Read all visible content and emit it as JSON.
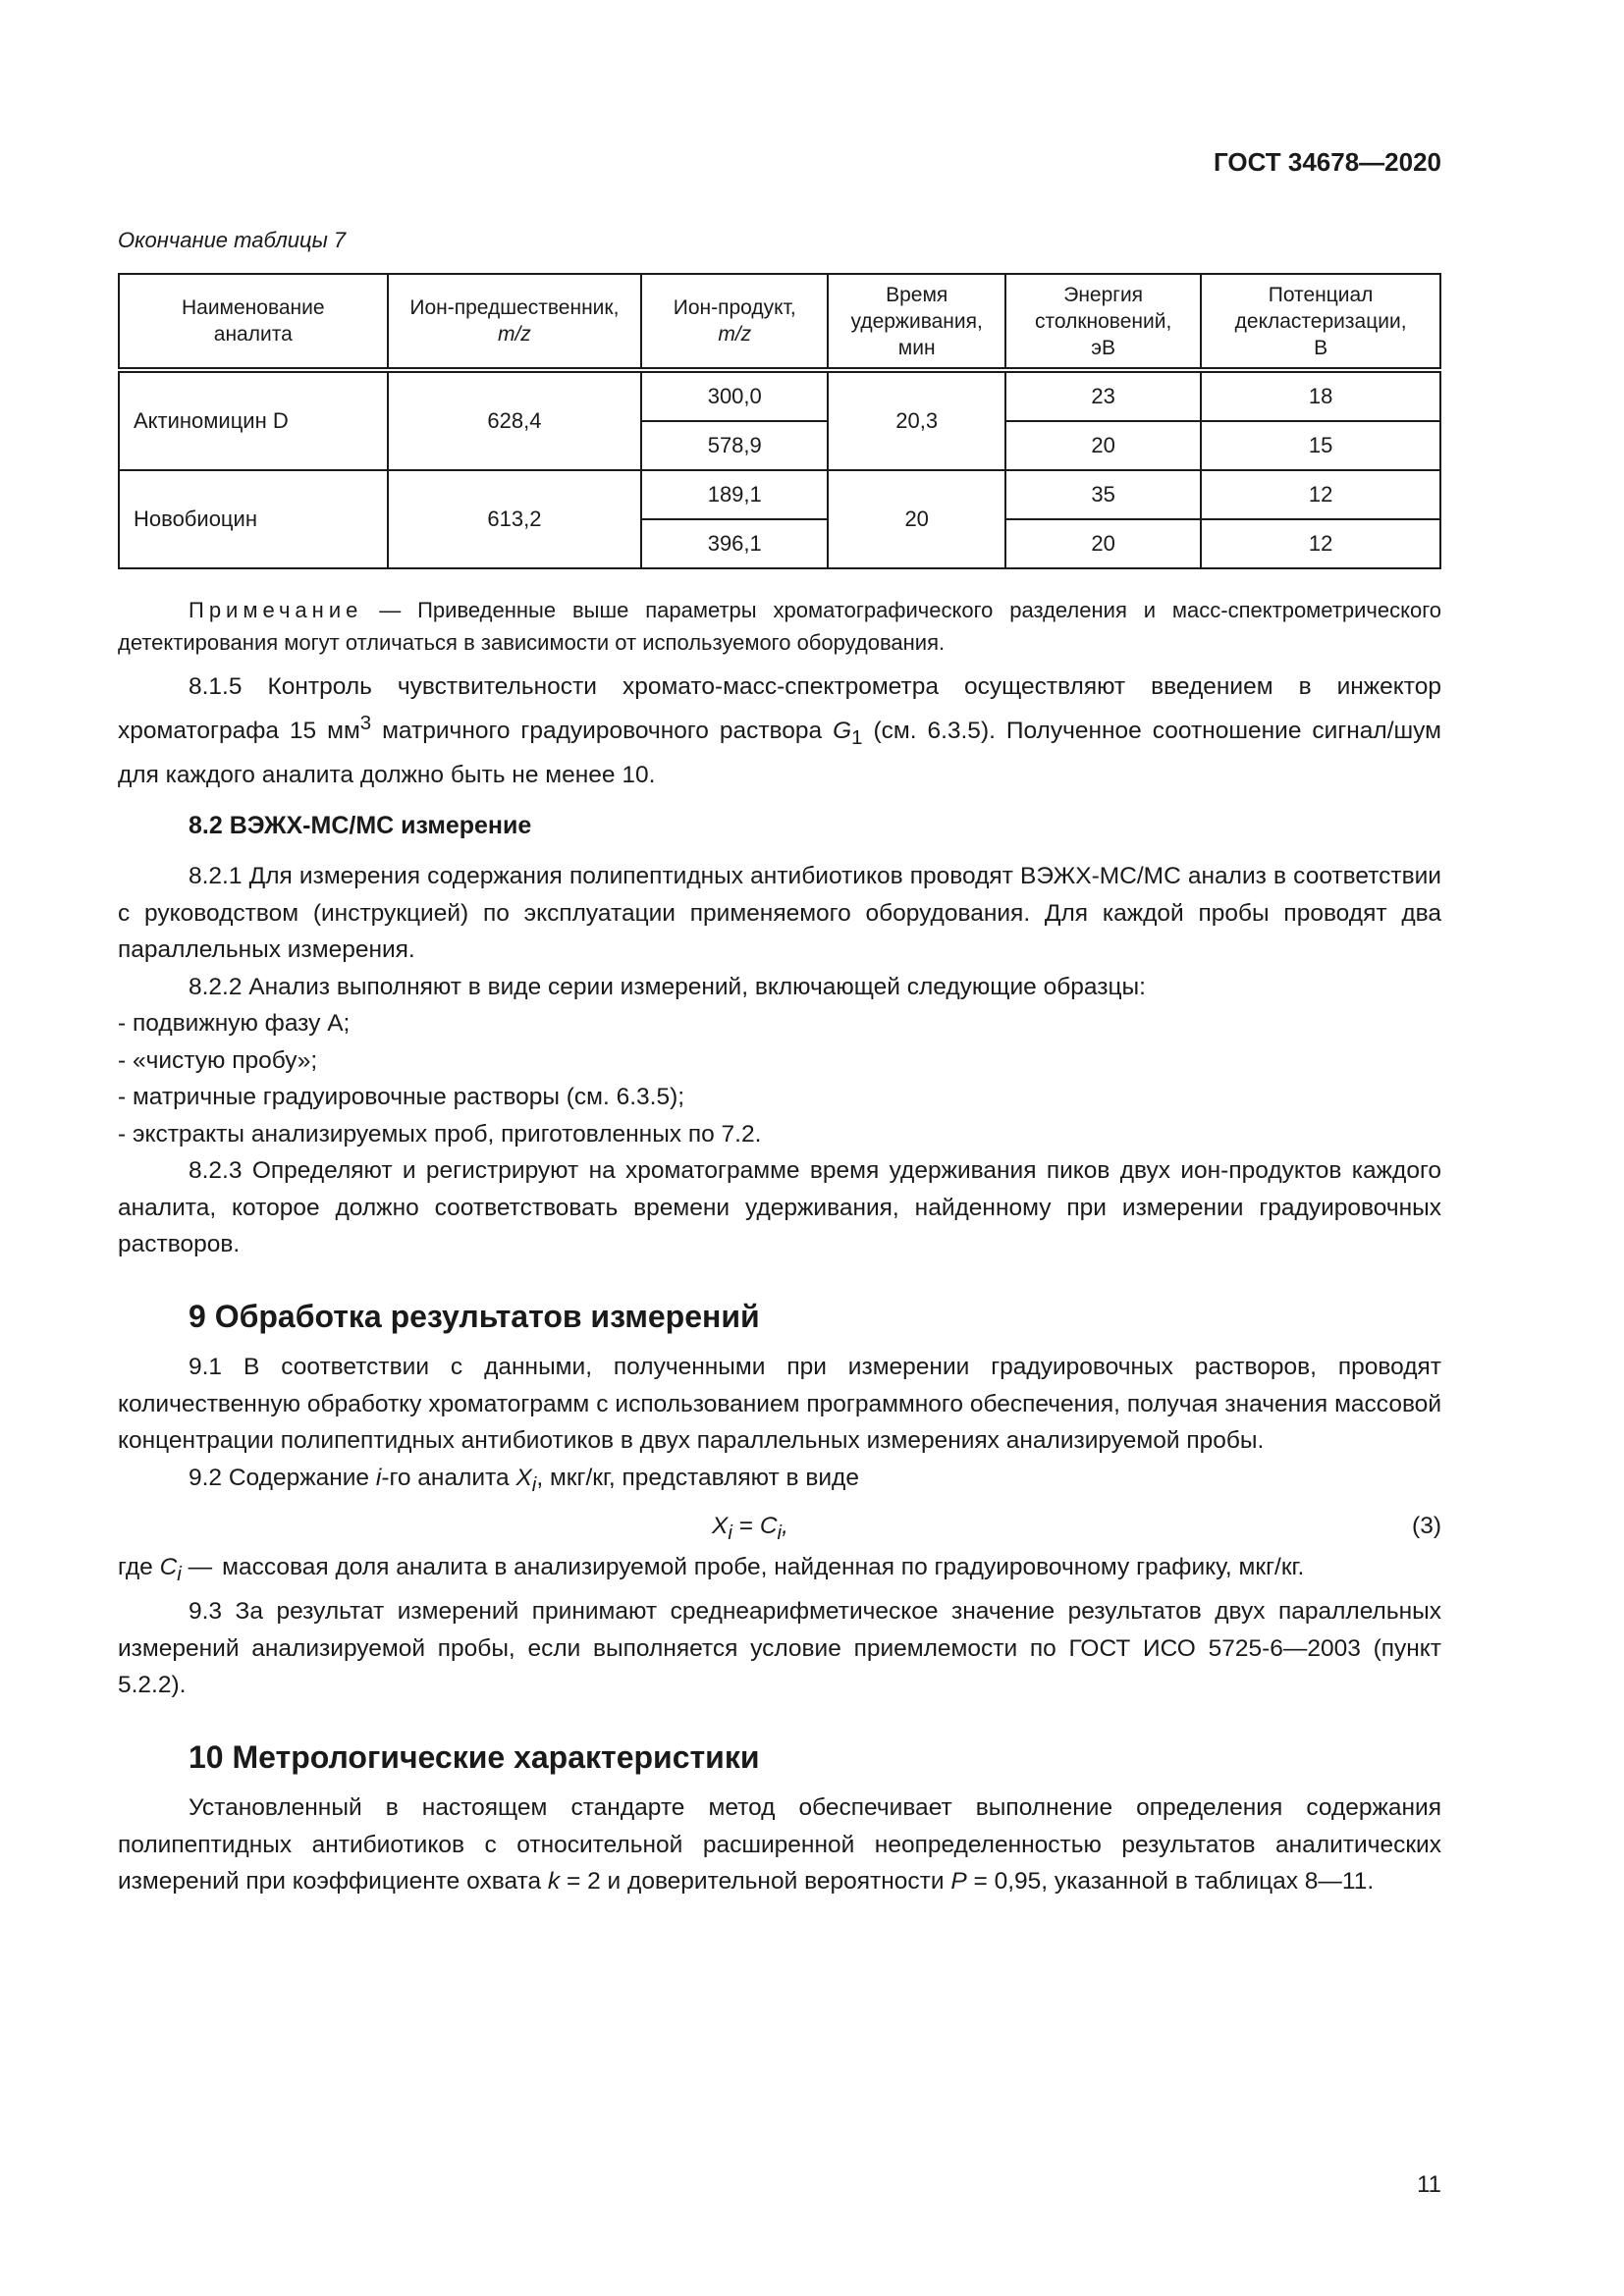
{
  "header": "ГОСТ 34678—2020",
  "table_caption": "Окончание таблицы 7",
  "table": {
    "columns": [
      [
        "Наименование",
        "аналита"
      ],
      [
        "Ион-предшественник,",
        "m/z"
      ],
      [
        "Ион-продукт,",
        "m/z"
      ],
      [
        "Время",
        "удерживания,",
        "мин"
      ],
      [
        "Энергия",
        "столкновений,",
        "эВ"
      ],
      [
        "Потенциал",
        "декластеризации,",
        "В"
      ]
    ],
    "rows": [
      {
        "name": "Актиномицин D",
        "precursor": "628,4",
        "time": "20,3",
        "products": [
          {
            "ion": "300,0",
            "energy": "23",
            "potential": "18"
          },
          {
            "ion": "578,9",
            "energy": "20",
            "potential": "15"
          }
        ]
      },
      {
        "name": "Новобиоцин",
        "precursor": "613,2",
        "time": "20",
        "products": [
          {
            "ion": "189,1",
            "energy": "35",
            "potential": "12"
          },
          {
            "ion": "396,1",
            "energy": "20",
            "potential": "12"
          }
        ]
      }
    ]
  },
  "note": {
    "label": "Примечание",
    "text": " — Приведенные выше параметры хроматографического разделения и масс-спектрометрического детектирования могут отличаться в зависимости от используемого оборудования."
  },
  "p815": {
    "a": "8.1.5 Контроль чувствительности хромато-масс-спектрометра осуществляют введением в инжектор хроматографа 15 мм",
    "sup": "3",
    "b": " матричного градуировочного раствора ",
    "g": "G",
    "gsub": "1",
    "c": " (см. 6.3.5). Полученное соотношение сигнал/шум для каждого аналита должно быть не менее 10."
  },
  "h82": "8.2 ВЭЖХ-МС/МС измерение",
  "p821": "8.2.1 Для измерения содержания полипептидных антибиотиков проводят ВЭЖХ-МС/МС анализ в соответствии с руководством (инструкцией) по эксплуатации применяемого оборудования. Для каждой пробы проводят два параллельных измерения.",
  "p822": "8.2.2 Анализ выполняют в виде серии измерений, включающей следующие образцы:",
  "list": [
    "- подвижную фазу А;",
    "- «чистую пробу»;",
    "- матричные градуировочные растворы (см. 6.3.5);",
    "- экстракты анализируемых проб, приготовленных по 7.2."
  ],
  "p823": "8.2.3 Определяют и регистрируют на хроматограмме время удерживания пиков двух ион-продуктов каждого аналита, которое должно соответствовать времени удерживания, найденному при измерении градуировочных растворов.",
  "h9": "9 Обработка результатов измерений",
  "p91": "9.1 В соответствии с данными, полученными при измерении градуировочных растворов, проводят количественную обработку хроматограмм с использованием программного обеспечения, получая значения массовой концентрации полипептидных антибиотиков в двух параллельных измерениях анализируемой пробы.",
  "p92": {
    "a": "9.2 Содержание ",
    "i": "i",
    "b": "-го аналита ",
    "x": "X",
    "xsub": "i",
    "c": ", мкг/кг, представляют в виде"
  },
  "formula": {
    "x": "X",
    "xsub": "i",
    "eq": " = ",
    "c": "C",
    "csub": "i",
    "end": ",",
    "number": "(3)"
  },
  "where": {
    "a": "где ",
    "c": "C",
    "csub": "i",
    "dash": " —",
    "text": "массовая доля аналита в анализируемой пробе, найденная по градуировочному графику, мкг/кг."
  },
  "p93": "9.3 За результат измерений принимают среднеарифметическое значение результатов двух параллельных измерений анализируемой пробы, если выполняется условие приемлемости по ГОСТ ИСО 5725-6—2003 (пункт 5.2.2).",
  "h10": "10 Метрологические характеристики",
  "p10": {
    "a": "Установленный в настоящем стандарте метод обеспечивает выполнение определения содержания полипептидных антибиотиков с относительной расширенной неопределенностью результатов аналитических измерений при коэффициенте охвата ",
    "k": "k",
    "b": " = 2 и доверительной вероятности ",
    "p": "P",
    "c": " = 0,95, указанной в таблицах 8—11."
  },
  "page_number": "11"
}
